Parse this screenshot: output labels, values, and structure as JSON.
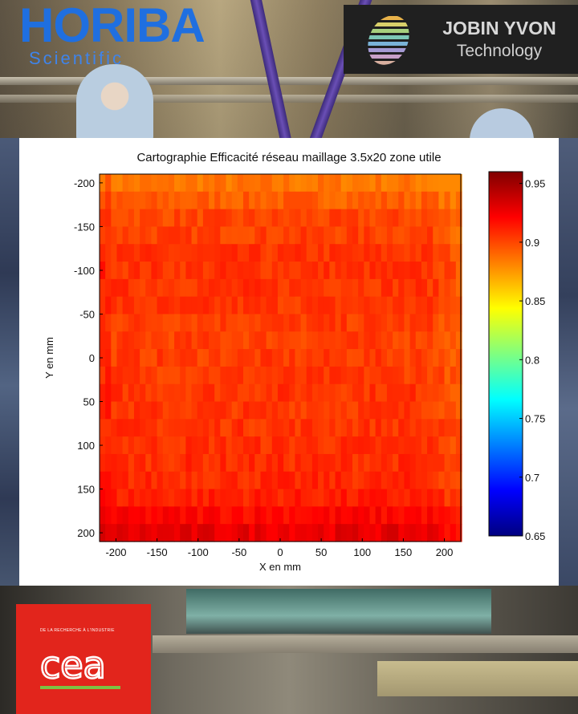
{
  "logos": {
    "horiba": {
      "name": "HORIBA",
      "subtitle": "Scientific",
      "color": "#1f6fe0"
    },
    "jobin_yvon": {
      "line1": "JOBIN YVON",
      "line2": "Technology"
    },
    "cea": {
      "name": "cea",
      "tagline": "DE LA RECHERCHE À L'INDUSTRIE",
      "color": "#e2251c"
    }
  },
  "chart_data": {
    "type": "heatmap",
    "title": "Cartographie Efficacité réseau maillage 3.5x20 zone utile",
    "xlabel": "X en mm",
    "ylabel": "Y en mm",
    "xlim": [
      -220,
      220
    ],
    "ylim": [
      -210,
      210
    ],
    "y_axis_inverted": true,
    "x_ticks": [
      -200,
      -150,
      -100,
      -50,
      0,
      50,
      100,
      150,
      200
    ],
    "y_ticks": [
      -200,
      -150,
      -100,
      -50,
      0,
      50,
      100,
      150,
      200
    ],
    "colorbar": {
      "colormap": "jet",
      "range": [
        0.65,
        0.96
      ],
      "ticks": [
        0.65,
        0.7,
        0.75,
        0.8,
        0.85,
        0.9,
        0.95
      ]
    },
    "grid_step_mm": {
      "x": 3.5,
      "y": 20
    },
    "row_y": [
      -200,
      -180,
      -160,
      -140,
      -120,
      -100,
      -80,
      -60,
      -40,
      -20,
      0,
      20,
      40,
      60,
      80,
      100,
      120,
      140,
      160,
      180,
      200
    ],
    "row_mean_efficiency": [
      0.885,
      0.893,
      0.9,
      0.902,
      0.905,
      0.906,
      0.906,
      0.905,
      0.903,
      0.902,
      0.903,
      0.904,
      0.906,
      0.905,
      0.906,
      0.907,
      0.908,
      0.909,
      0.912,
      0.92,
      0.928
    ],
    "edge_falloff": {
      "left": 0.0,
      "right": -0.012
    },
    "value_range": [
      0.88,
      0.935
    ]
  }
}
